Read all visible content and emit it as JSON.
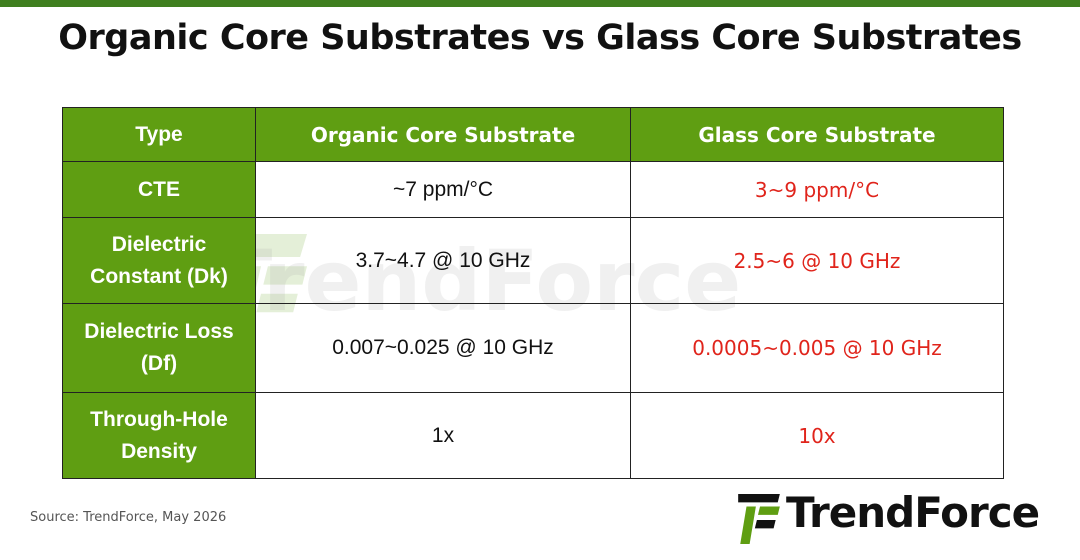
{
  "title": "Organic Core Substrates vs Glass Core Substrates",
  "watermark": "TrendForce",
  "table": {
    "header": [
      "Type",
      "Organic Core Substrate",
      "Glass Core Substrate"
    ],
    "rows": [
      [
        "CTE",
        "~7 ppm/°C",
        "3~9 ppm/°C"
      ],
      [
        "Dielectric Constant (Dk)",
        "3.7~4.7 @ 10 GHz",
        "2.5~6 @ 10 GHz"
      ],
      [
        "Dielectric Loss (Df)",
        "0.007~0.025 @ 10 GHz",
        "0.0005~0.005 @ 10 GHz"
      ],
      [
        "Through-Hole Density",
        "1x",
        "10x"
      ]
    ]
  },
  "source": "Source: TrendForce, May 2026",
  "logo": "TrendForce"
}
